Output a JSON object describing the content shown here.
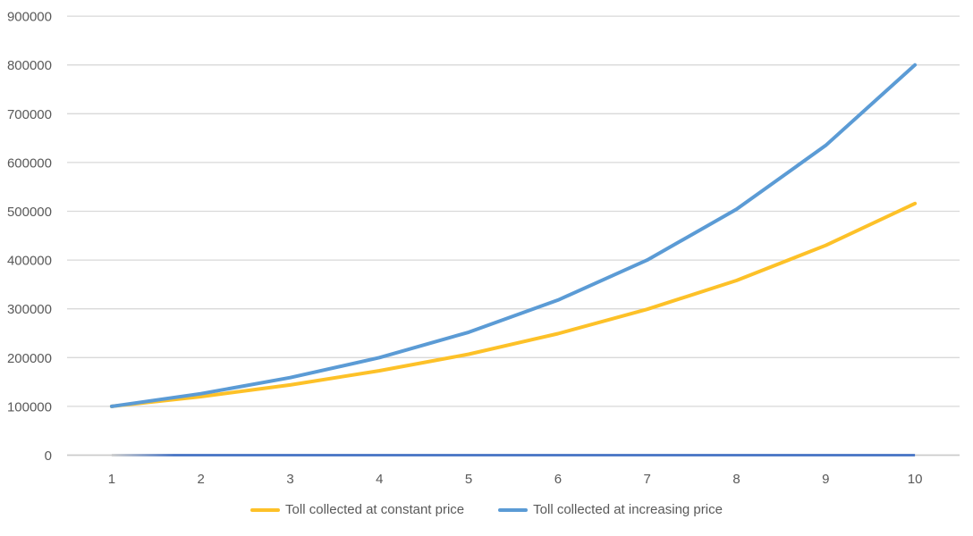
{
  "chart_data": {
    "type": "line",
    "title": "",
    "xlabel": "",
    "ylabel": "",
    "x": [
      1,
      2,
      3,
      4,
      5,
      6,
      7,
      8,
      9,
      10
    ],
    "x_tick_labels": [
      "1",
      "2",
      "3",
      "4",
      "5",
      "6",
      "7",
      "8",
      "9",
      "10"
    ],
    "ylim": [
      0,
      900000
    ],
    "y_tick_step": 100000,
    "y_tick_labels": [
      "0",
      "100000",
      "200000",
      "300000",
      "400000",
      "500000",
      "600000",
      "700000",
      "800000",
      "900000"
    ],
    "grid": "horizontal",
    "legend_position": "bottom-center",
    "gridline_color": "#D9D9D9",
    "axis_line_color": "#CBCBCB",
    "tick_label_color": "#595959",
    "background_color": "#FFFFFF",
    "series": [
      {
        "name": "Toll collected at constant price",
        "color": "#FDC128",
        "in_legend": true,
        "values": [
          100000,
          120000,
          144000,
          173000,
          207000,
          249000,
          299000,
          358000,
          430000,
          516000
        ]
      },
      {
        "name": "Toll collected at increasing price",
        "color": "#5B9BD5",
        "in_legend": true,
        "values": [
          100000,
          126000,
          159000,
          200000,
          252000,
          318000,
          400000,
          504000,
          635000,
          800000
        ]
      },
      {
        "name": "zero-baseline",
        "color": "#4472C4",
        "in_legend": false,
        "values": [
          0,
          0,
          0,
          0,
          0,
          0,
          0,
          0,
          0,
          0
        ]
      }
    ]
  }
}
